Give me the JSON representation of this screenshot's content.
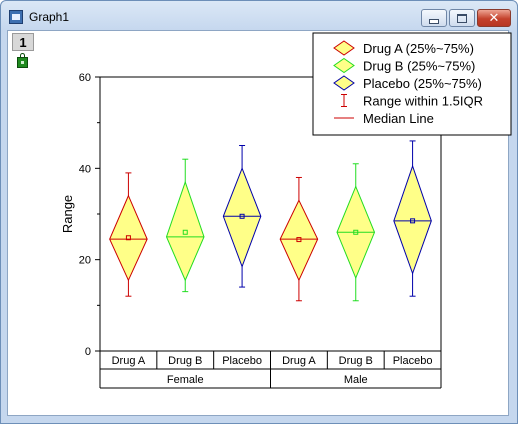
{
  "window": {
    "title": "Graph1",
    "layer_number": "1"
  },
  "chart_data": {
    "type": "box",
    "title": "",
    "ylabel": "Range",
    "xlabel": "",
    "ylim": [
      0,
      60
    ],
    "y_ticks": [
      0,
      20,
      40,
      60
    ],
    "grid": false,
    "legend_placement": "top-right",
    "groups": [
      "Female",
      "Male"
    ],
    "categories": [
      "Drug A",
      "Drug B",
      "Placebo"
    ],
    "legend": [
      {
        "label": "Drug A (25%~75%)",
        "kind": "diamond",
        "color": "#cc0000",
        "fill": "#ffff88"
      },
      {
        "label": "Drug B (25%~75%)",
        "kind": "diamond",
        "color": "#22dd22",
        "fill": "#ffff88"
      },
      {
        "label": "Placebo (25%~75%)",
        "kind": "diamond",
        "color": "#0000aa",
        "fill": "#ffff88"
      },
      {
        "label": "Range within 1.5IQR",
        "kind": "whisker",
        "color": "#cc0000"
      },
      {
        "label": "Median Line",
        "kind": "line",
        "color": "#cc0000"
      }
    ],
    "series": [
      {
        "group": "Female",
        "category": "Drug A",
        "color": "#cc0000",
        "whisker_min": 12,
        "q1": 15.5,
        "median": 24.5,
        "mean": 24.8,
        "q3": 34,
        "whisker_max": 39
      },
      {
        "group": "Female",
        "category": "Drug B",
        "color": "#22dd22",
        "whisker_min": 13,
        "q1": 15.5,
        "median": 25,
        "mean": 26,
        "q3": 37,
        "whisker_max": 42
      },
      {
        "group": "Female",
        "category": "Placebo",
        "color": "#0000aa",
        "whisker_min": 14,
        "q1": 18.5,
        "median": 29.5,
        "mean": 29.5,
        "q3": 40,
        "whisker_max": 45
      },
      {
        "group": "Male",
        "category": "Drug A",
        "color": "#cc0000",
        "whisker_min": 11,
        "q1": 15.5,
        "median": 24.5,
        "mean": 24.4,
        "q3": 33,
        "whisker_max": 38
      },
      {
        "group": "Male",
        "category": "Drug B",
        "color": "#22dd22",
        "whisker_min": 11,
        "q1": 16,
        "median": 26,
        "mean": 26,
        "q3": 36,
        "whisker_max": 41
      },
      {
        "group": "Male",
        "category": "Placebo",
        "color": "#0000aa",
        "whisker_min": 12,
        "q1": 17,
        "median": 28.5,
        "mean": 28.5,
        "q3": 40.5,
        "whisker_max": 46
      }
    ]
  }
}
